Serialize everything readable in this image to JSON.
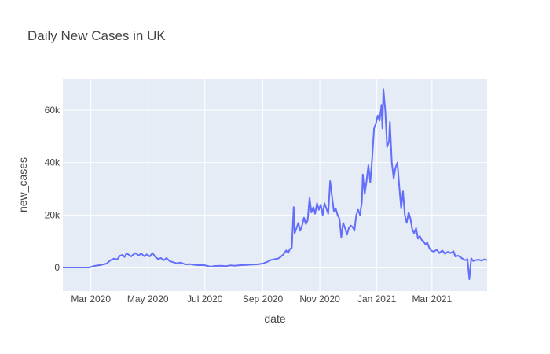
{
  "chart_data": {
    "type": "line",
    "title": "Daily New Cases in UK",
    "xlabel": "date",
    "ylabel": "new_cases",
    "x_range": [
      "2020-01-31",
      "2021-04-29"
    ],
    "ylim": [
      -9000,
      72000
    ],
    "x_ticks": [
      {
        "date": "2020-03-01",
        "label": "Mar 2020"
      },
      {
        "date": "2020-05-01",
        "label": "May 2020"
      },
      {
        "date": "2020-07-01",
        "label": "Jul 2020"
      },
      {
        "date": "2020-09-01",
        "label": "Sep 2020"
      },
      {
        "date": "2020-11-01",
        "label": "Nov 2020"
      },
      {
        "date": "2021-01-01",
        "label": "Jan 2021"
      },
      {
        "date": "2021-03-01",
        "label": "Mar 2021"
      }
    ],
    "y_ticks": [
      {
        "value": 0,
        "label": "0"
      },
      {
        "value": 20000,
        "label": "20k"
      },
      {
        "value": 40000,
        "label": "40k"
      },
      {
        "value": 60000,
        "label": "60k"
      }
    ],
    "grid": true,
    "colors": {
      "line": "#636efa",
      "plot_bg": "#e5ecf6",
      "grid": "#ffffff"
    },
    "series": [
      {
        "points": [
          [
            "2020-01-31",
            0
          ],
          [
            "2020-02-10",
            0
          ],
          [
            "2020-02-20",
            0
          ],
          [
            "2020-02-28",
            0
          ],
          [
            "2020-03-05",
            600
          ],
          [
            "2020-03-12",
            1000
          ],
          [
            "2020-03-18",
            1500
          ],
          [
            "2020-03-22",
            2800
          ],
          [
            "2020-03-26",
            3400
          ],
          [
            "2020-03-29",
            3000
          ],
          [
            "2020-04-01",
            4500
          ],
          [
            "2020-04-04",
            4800
          ],
          [
            "2020-04-06",
            4000
          ],
          [
            "2020-04-08",
            5300
          ],
          [
            "2020-04-10",
            5000
          ],
          [
            "2020-04-13",
            4200
          ],
          [
            "2020-04-15",
            4800
          ],
          [
            "2020-04-18",
            5500
          ],
          [
            "2020-04-21",
            4600
          ],
          [
            "2020-04-24",
            5300
          ],
          [
            "2020-04-27",
            4300
          ],
          [
            "2020-04-30",
            5000
          ],
          [
            "2020-05-03",
            4200
          ],
          [
            "2020-05-06",
            5500
          ],
          [
            "2020-05-09",
            4000
          ],
          [
            "2020-05-12",
            3200
          ],
          [
            "2020-05-15",
            3600
          ],
          [
            "2020-05-18",
            2800
          ],
          [
            "2020-05-21",
            3600
          ],
          [
            "2020-05-24",
            2500
          ],
          [
            "2020-05-28",
            2000
          ],
          [
            "2020-06-01",
            1600
          ],
          [
            "2020-06-05",
            1900
          ],
          [
            "2020-06-10",
            1200
          ],
          [
            "2020-06-15",
            1300
          ],
          [
            "2020-06-20",
            1000
          ],
          [
            "2020-06-25",
            900
          ],
          [
            "2020-06-30",
            900
          ],
          [
            "2020-07-04",
            600
          ],
          [
            "2020-07-07",
            300
          ],
          [
            "2020-07-12",
            600
          ],
          [
            "2020-07-18",
            700
          ],
          [
            "2020-07-23",
            500
          ],
          [
            "2020-07-28",
            800
          ],
          [
            "2020-08-02",
            700
          ],
          [
            "2020-08-08",
            900
          ],
          [
            "2020-08-14",
            1000
          ],
          [
            "2020-08-20",
            1100
          ],
          [
            "2020-08-26",
            1200
          ],
          [
            "2020-09-01",
            1500
          ],
          [
            "2020-09-06",
            2200
          ],
          [
            "2020-09-10",
            2900
          ],
          [
            "2020-09-14",
            3200
          ],
          [
            "2020-09-17",
            3400
          ],
          [
            "2020-09-20",
            4000
          ],
          [
            "2020-09-23",
            5000
          ],
          [
            "2020-09-26",
            6500
          ],
          [
            "2020-09-28",
            5500
          ],
          [
            "2020-09-30",
            7000
          ],
          [
            "2020-10-02",
            7500
          ],
          [
            "2020-10-04",
            23000
          ],
          [
            "2020-10-05",
            13000
          ],
          [
            "2020-10-07",
            15000
          ],
          [
            "2020-10-09",
            17000
          ],
          [
            "2020-10-11",
            14000
          ],
          [
            "2020-10-13",
            16000
          ],
          [
            "2020-10-15",
            19000
          ],
          [
            "2020-10-17",
            16500
          ],
          [
            "2020-10-19",
            18000
          ],
          [
            "2020-10-21",
            26500
          ],
          [
            "2020-10-23",
            21000
          ],
          [
            "2020-10-25",
            23000
          ],
          [
            "2020-10-27",
            20500
          ],
          [
            "2020-10-29",
            24500
          ],
          [
            "2020-10-31",
            22000
          ],
          [
            "2020-11-02",
            24000
          ],
          [
            "2020-11-04",
            20000
          ],
          [
            "2020-11-06",
            24500
          ],
          [
            "2020-11-08",
            22500
          ],
          [
            "2020-11-10",
            20500
          ],
          [
            "2020-11-12",
            33000
          ],
          [
            "2020-11-14",
            27000
          ],
          [
            "2020-11-16",
            21500
          ],
          [
            "2020-11-18",
            22500
          ],
          [
            "2020-11-20",
            20000
          ],
          [
            "2020-11-22",
            18500
          ],
          [
            "2020-11-24",
            11500
          ],
          [
            "2020-11-26",
            17000
          ],
          [
            "2020-11-28",
            15000
          ],
          [
            "2020-11-30",
            12500
          ],
          [
            "2020-12-02",
            15000
          ],
          [
            "2020-12-04",
            16000
          ],
          [
            "2020-12-06",
            15500
          ],
          [
            "2020-12-08",
            14000
          ],
          [
            "2020-12-10",
            20000
          ],
          [
            "2020-12-12",
            22000
          ],
          [
            "2020-12-14",
            20000
          ],
          [
            "2020-12-16",
            25000
          ],
          [
            "2020-12-17",
            35500
          ],
          [
            "2020-12-19",
            28000
          ],
          [
            "2020-12-21",
            33000
          ],
          [
            "2020-12-23",
            39000
          ],
          [
            "2020-12-25",
            32500
          ],
          [
            "2020-12-27",
            41500
          ],
          [
            "2020-12-29",
            53000
          ],
          [
            "2020-12-31",
            55000
          ],
          [
            "2021-01-02",
            58000
          ],
          [
            "2021-01-04",
            56000
          ],
          [
            "2021-01-06",
            62000
          ],
          [
            "2021-01-07",
            53000
          ],
          [
            "2021-01-08",
            68000
          ],
          [
            "2021-01-10",
            60000
          ],
          [
            "2021-01-12",
            46000
          ],
          [
            "2021-01-14",
            48000
          ],
          [
            "2021-01-15",
            55500
          ],
          [
            "2021-01-17",
            40000
          ],
          [
            "2021-01-19",
            34000
          ],
          [
            "2021-01-21",
            38000
          ],
          [
            "2021-01-23",
            40000
          ],
          [
            "2021-01-25",
            31000
          ],
          [
            "2021-01-27",
            22500
          ],
          [
            "2021-01-29",
            29000
          ],
          [
            "2021-01-31",
            20000
          ],
          [
            "2021-02-02",
            17000
          ],
          [
            "2021-02-04",
            21000
          ],
          [
            "2021-02-06",
            18500
          ],
          [
            "2021-02-08",
            14500
          ],
          [
            "2021-02-10",
            13000
          ],
          [
            "2021-02-12",
            15000
          ],
          [
            "2021-02-14",
            11000
          ],
          [
            "2021-02-16",
            12000
          ],
          [
            "2021-02-18",
            10500
          ],
          [
            "2021-02-20",
            10000
          ],
          [
            "2021-02-22",
            8800
          ],
          [
            "2021-02-24",
            9500
          ],
          [
            "2021-02-26",
            7500
          ],
          [
            "2021-02-28",
            6500
          ],
          [
            "2021-03-03",
            6000
          ],
          [
            "2021-03-06",
            6800
          ],
          [
            "2021-03-09",
            5500
          ],
          [
            "2021-03-12",
            6500
          ],
          [
            "2021-03-15",
            5200
          ],
          [
            "2021-03-18",
            6000
          ],
          [
            "2021-03-21",
            5500
          ],
          [
            "2021-03-24",
            6200
          ],
          [
            "2021-03-26",
            4200
          ],
          [
            "2021-03-29",
            4500
          ],
          [
            "2021-04-01",
            3800
          ],
          [
            "2021-04-04",
            3000
          ],
          [
            "2021-04-06",
            2800
          ],
          [
            "2021-04-08",
            3200
          ],
          [
            "2021-04-10",
            -4500
          ],
          [
            "2021-04-12",
            3500
          ],
          [
            "2021-04-14",
            2500
          ],
          [
            "2021-04-17",
            2800
          ],
          [
            "2021-04-20",
            3000
          ],
          [
            "2021-04-23",
            2600
          ],
          [
            "2021-04-26",
            3100
          ],
          [
            "2021-04-29",
            2800
          ]
        ]
      }
    ]
  }
}
